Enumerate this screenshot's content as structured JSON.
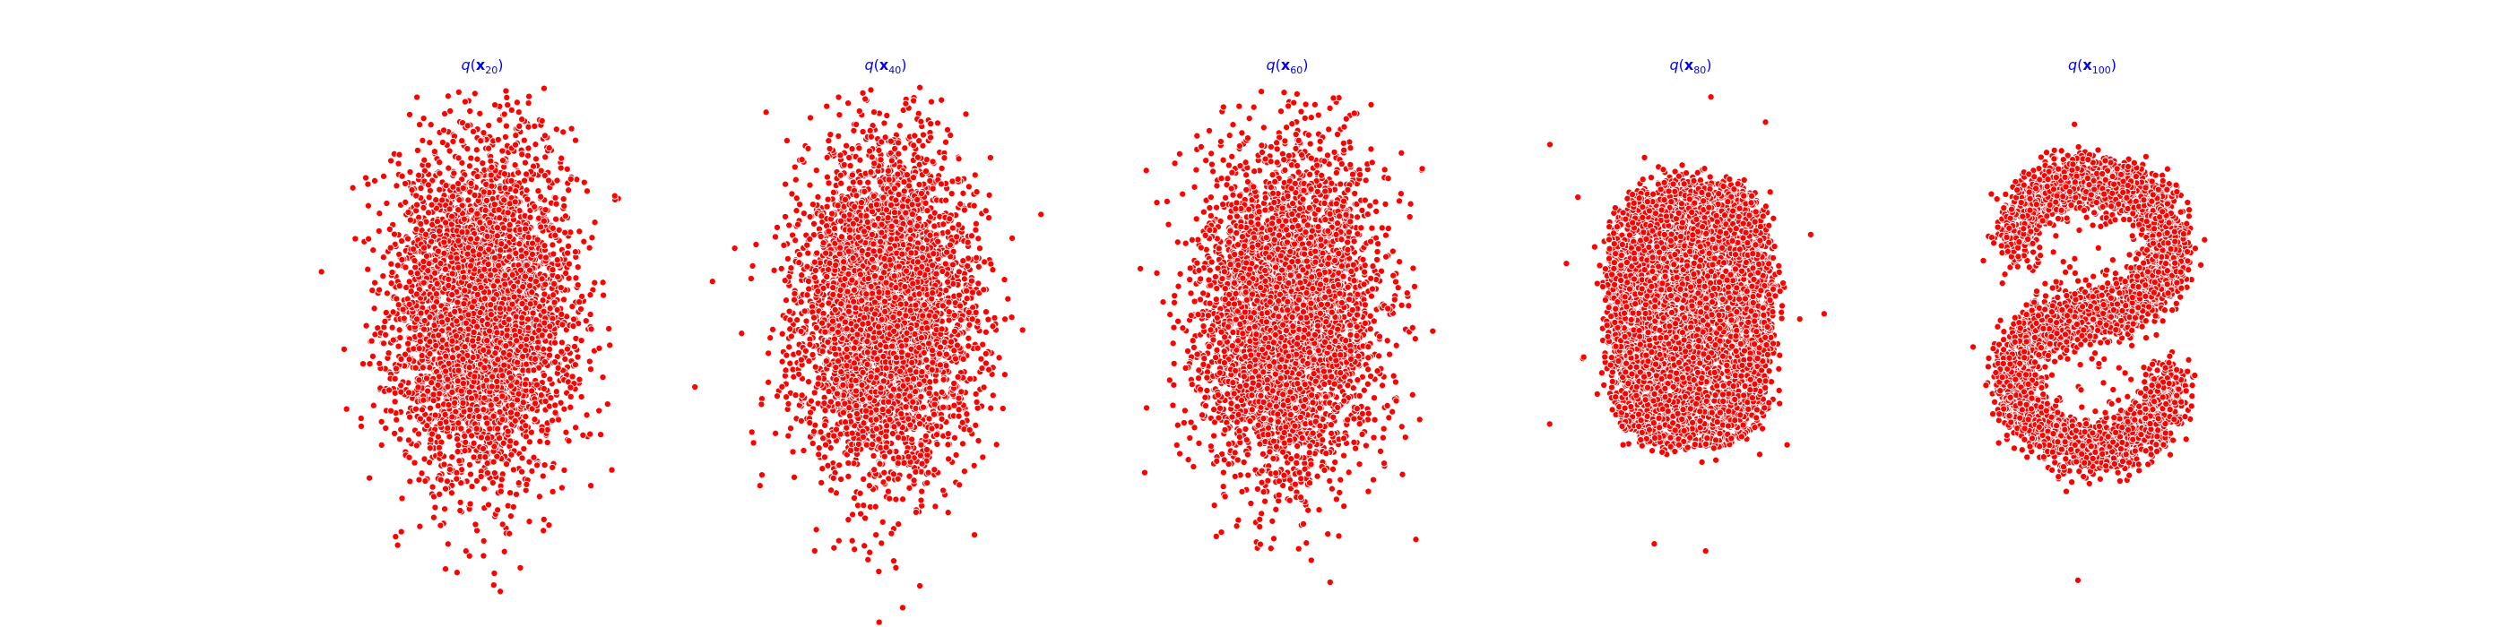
{
  "figure": {
    "background": "#ffffff"
  },
  "chart_data": [
    {
      "type": "scatter",
      "title": "q(x20)",
      "title_parts": {
        "func": "q",
        "open": "(",
        "var": "x",
        "sub": "20",
        "close": ")"
      },
      "grid": false,
      "axes_visible": false,
      "marker_color": "#ff0000",
      "marker_edge_color": "#ffffff",
      "title_color": "#0000ff",
      "shape": "gaussian-blob",
      "n_points": 4200,
      "x_range": [
        -2.2,
        2.2
      ],
      "y_range": [
        -2.8,
        2.8
      ]
    },
    {
      "type": "scatter",
      "title": "q(x40)",
      "title_parts": {
        "func": "q",
        "open": "(",
        "var": "x",
        "sub": "40",
        "close": ")"
      },
      "grid": false,
      "axes_visible": false,
      "marker_color": "#ff0000",
      "marker_edge_color": "#ffffff",
      "title_color": "#0000ff",
      "shape": "gaussian-blob",
      "n_points": 4200,
      "x_range": [
        -2.2,
        2.2
      ],
      "y_range": [
        -2.8,
        2.8
      ]
    },
    {
      "type": "scatter",
      "title": "q(x60)",
      "title_parts": {
        "func": "q",
        "open": "(",
        "var": "x",
        "sub": "60",
        "close": ")"
      },
      "grid": false,
      "axes_visible": false,
      "marker_color": "#ff0000",
      "marker_edge_color": "#ffffff",
      "title_color": "#0000ff",
      "shape": "gaussian-blob",
      "n_points": 4200,
      "x_range": [
        -2.2,
        2.2
      ],
      "y_range": [
        -2.8,
        2.8
      ]
    },
    {
      "type": "scatter",
      "title": "q(x80)",
      "title_parts": {
        "func": "q",
        "open": "(",
        "var": "x",
        "sub": "80",
        "close": ")"
      },
      "grid": false,
      "axes_visible": false,
      "marker_color": "#ff0000",
      "marker_edge_color": "#ffffff",
      "title_color": "#0000ff",
      "shape": "rounded-blob",
      "n_points": 4500,
      "x_range": [
        -2.2,
        2.2
      ],
      "y_range": [
        -2.8,
        2.8
      ]
    },
    {
      "type": "scatter",
      "title": "q(x100)",
      "title_parts": {
        "func": "q",
        "open": "(",
        "var": "x",
        "sub": "100",
        "close": ")"
      },
      "grid": false,
      "axes_visible": false,
      "marker_color": "#ff0000",
      "marker_edge_color": "#ffffff",
      "title_color": "#0000ff",
      "shape": "s-curve",
      "n_points": 4500,
      "x_range": [
        -2.2,
        2.2
      ],
      "y_range": [
        -2.8,
        2.8
      ]
    }
  ]
}
